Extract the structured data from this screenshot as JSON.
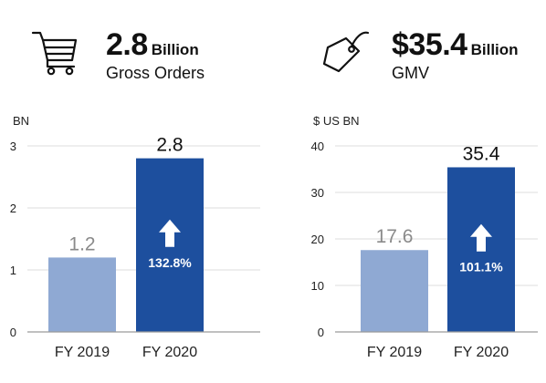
{
  "colors": {
    "bar_prior": "#8fa9d3",
    "bar_current": "#1d4f9e",
    "label_prior": "#8a8a8a",
    "label_current": "#111111",
    "grid": "#dcdcdc",
    "baseline": "#9a9a9a"
  },
  "orders": {
    "icon": "shopping-cart-icon",
    "big_value": "2.8",
    "unit": "Billion",
    "label": "Gross Orders"
  },
  "gmv": {
    "icon": "price-tag-icon",
    "big_value": "$35.4",
    "unit": "Billion",
    "label": "GMV"
  },
  "chart_data": [
    {
      "type": "bar",
      "ylabel": "BN",
      "ylim": [
        0,
        3
      ],
      "yticks": [
        0,
        1,
        2,
        3
      ],
      "grid": true,
      "categories": [
        "FY 2019",
        "FY 2020"
      ],
      "values": [
        1.2,
        2.8
      ],
      "value_labels": [
        "1.2",
        "2.8"
      ],
      "growth_label": "132.8%",
      "growth_icon": "arrow-up-icon"
    },
    {
      "type": "bar",
      "ylabel": "$ US BN",
      "ylim": [
        0,
        40
      ],
      "yticks": [
        0,
        10,
        20,
        30,
        40
      ],
      "grid": true,
      "categories": [
        "FY 2019",
        "FY 2020"
      ],
      "values": [
        17.6,
        35.4
      ],
      "value_labels": [
        "17.6",
        "35.4"
      ],
      "growth_label": "101.1%",
      "growth_icon": "arrow-up-icon"
    }
  ]
}
